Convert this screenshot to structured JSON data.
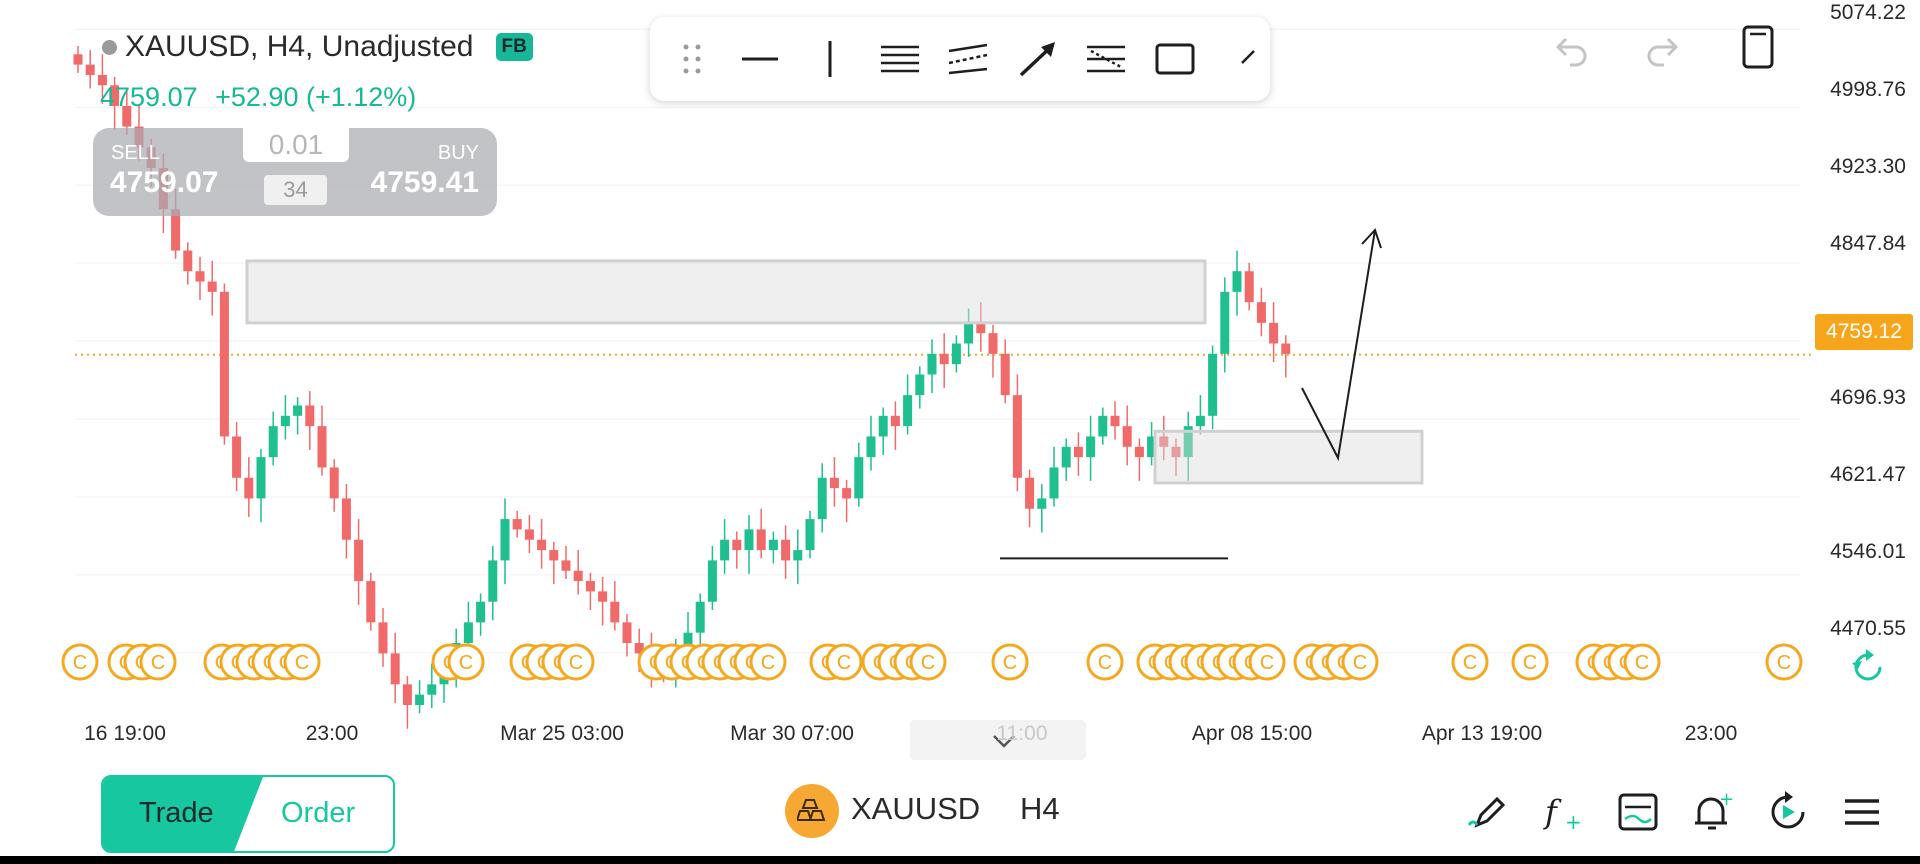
{
  "header": {
    "symbol_line": "XAUUSD, H4, Unadjusted",
    "badge": "FB",
    "last_price": "4759.07",
    "change": "+52.90 (+1.12%)"
  },
  "trade_panel": {
    "sell_label": "SELL",
    "buy_label": "BUY",
    "sell_price": "4759.07",
    "buy_price": "4759.41",
    "quantity": "0.01",
    "spread": "34"
  },
  "toolbar": {
    "tools": [
      "drag-handle-icon",
      "horizontal-line-icon",
      "vertical-line-icon",
      "parallel-channel-icon",
      "regression-channel-icon",
      "arrow-icon",
      "fib-retracement-icon",
      "rectangle-icon",
      "brush-icon"
    ]
  },
  "top_actions": [
    "undo-icon",
    "redo-icon",
    "phone-layout-icon"
  ],
  "price_axis": {
    "labels": [
      "5074.22",
      "4998.76",
      "4923.30",
      "4847.84",
      "4696.93",
      "4621.47",
      "4546.01",
      "4470.55"
    ],
    "current_price": "4759.12"
  },
  "time_axis": {
    "labels": [
      "16 19:00",
      "23:00",
      "Mar 25 03:00",
      "Mar 30 07:00",
      "11:00",
      "Apr 08 15:00",
      "Apr 13 19:00",
      "23:00"
    ]
  },
  "events": {
    "glyph": "C"
  },
  "chart_data": {
    "type": "candlestick",
    "symbol": "XAUUSD",
    "timeframe": "H4",
    "ylim": [
      4420,
      5090
    ],
    "current_price": 4759.12,
    "note_colors": {
      "up": "#1fbf8f",
      "down": "#f06a6a",
      "event": "#f3a81f"
    },
    "candles_approx_closes": [
      5040,
      5030,
      5020,
      5000,
      4980,
      4960,
      4940,
      4900,
      4860,
      4840,
      4830,
      4820,
      4680,
      4640,
      4620,
      4660,
      4690,
      4700,
      4710,
      4690,
      4650,
      4620,
      4580,
      4540,
      4500,
      4470,
      4440,
      4420,
      4430,
      4440,
      4460,
      4480,
      4500,
      4520,
      4560,
      4600,
      4590,
      4580,
      4570,
      4560,
      4550,
      4540,
      4530,
      4520,
      4500,
      4480,
      4470,
      4460,
      4450,
      4470,
      4490,
      4520,
      4560,
      4580,
      4570,
      4590,
      4570,
      4580,
      4560,
      4570,
      4600,
      4640,
      4630,
      4620,
      4660,
      4680,
      4700,
      4690,
      4720,
      4740,
      4760,
      4750,
      4770,
      4790,
      4780,
      4760,
      4720,
      4640,
      4610,
      4620,
      4650,
      4670,
      4660,
      4680,
      4700,
      4690,
      4670,
      4660,
      4680,
      4670,
      4660,
      4690,
      4700,
      4760,
      4820,
      4840,
      4810,
      4790,
      4770,
      4760
    ],
    "annotations": {
      "resistance_zone": [
        4790,
        4850
      ],
      "support_zone": [
        4635,
        4685
      ],
      "support_line": 4562
    }
  },
  "bottom_bar": {
    "trade": "Trade",
    "order": "Order",
    "symbol": "XAUUSD",
    "timeframe": "H4",
    "icons": [
      "draw-tools-icon",
      "indicators-icon",
      "chart-settings-icon",
      "alert-add-icon",
      "replay-icon",
      "menu-icon"
    ]
  }
}
